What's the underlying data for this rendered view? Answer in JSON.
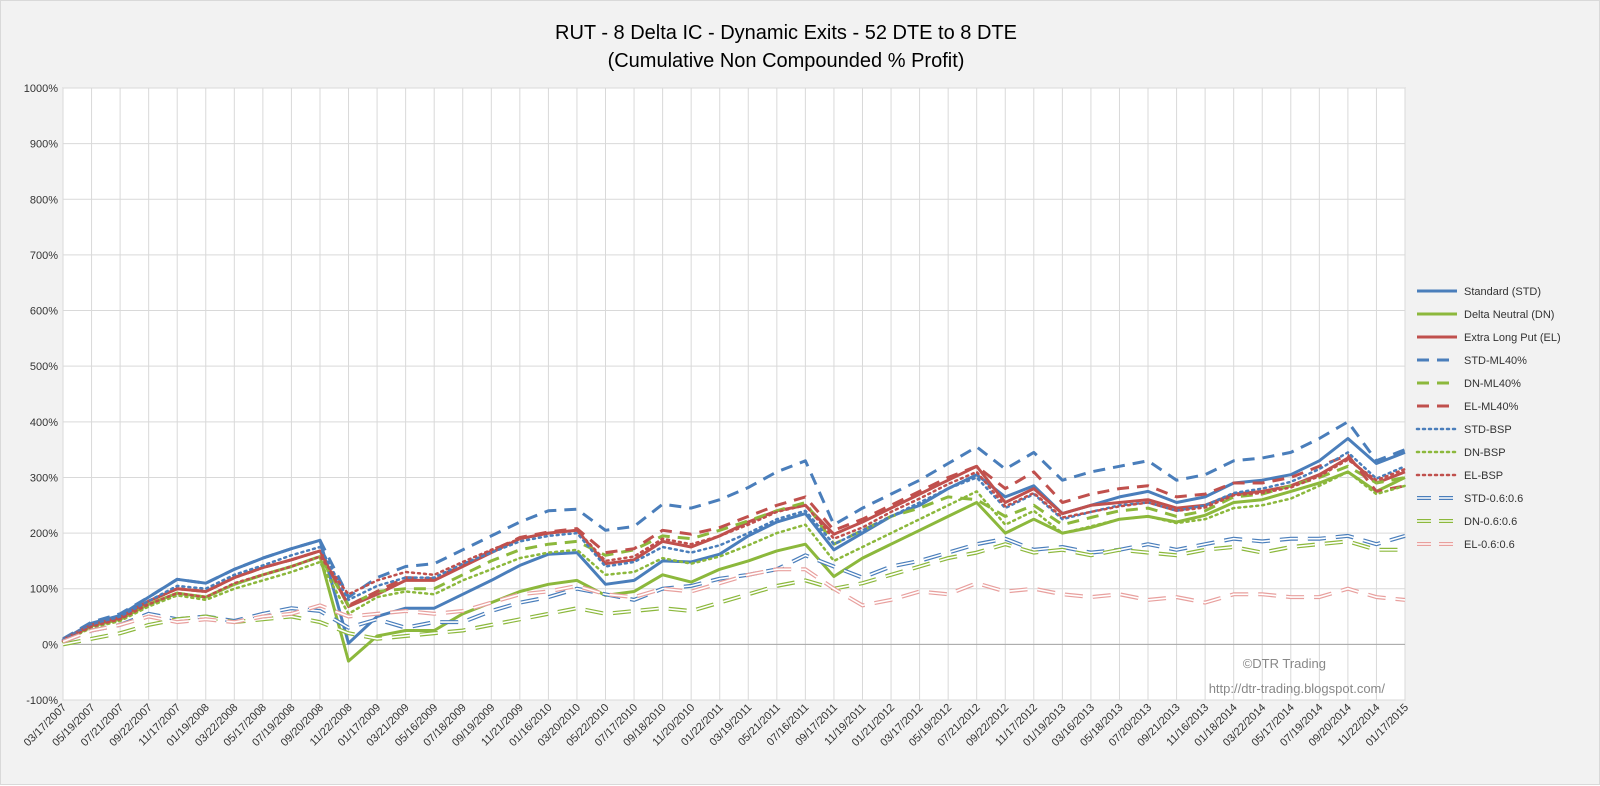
{
  "chart_data": {
    "type": "line",
    "title": "RUT - 8 Delta IC - Dynamic Exits - 52 DTE to 8 DTE",
    "subtitle": "(Cumulative Non Compounded % Profit)",
    "xlabel": "",
    "ylabel": "",
    "ylim": [
      -100,
      1000
    ],
    "y_ticks": [
      "-100%",
      "0%",
      "100%",
      "200%",
      "300%",
      "400%",
      "500%",
      "600%",
      "700%",
      "800%",
      "900%",
      "1000%"
    ],
    "grid": true,
    "legend_position": "right",
    "x_ticks": [
      "03/17/2007",
      "05/19/2007",
      "07/21/2007",
      "09/22/2007",
      "11/17/2007",
      "01/19/2008",
      "03/22/2008",
      "05/17/2008",
      "07/19/2008",
      "09/20/2008",
      "11/22/2008",
      "01/17/2009",
      "03/21/2009",
      "05/16/2009",
      "07/18/2009",
      "09/19/2009",
      "11/21/2009",
      "01/16/2010",
      "03/20/2010",
      "05/22/2010",
      "07/17/2010",
      "09/18/2010",
      "11/20/2010",
      "01/22/2011",
      "03/19/2011",
      "05/21/2011",
      "07/16/2011",
      "09/17/2011",
      "11/19/2011",
      "01/21/2012",
      "03/17/2012",
      "05/19/2012",
      "07/21/2012",
      "09/22/2012",
      "11/17/2012",
      "01/19/2013",
      "03/16/2013",
      "05/18/2013",
      "07/20/2013",
      "09/21/2013",
      "11/16/2013",
      "01/18/2014",
      "03/22/2014",
      "05/17/2014",
      "07/19/2014",
      "09/20/2014",
      "11/22/2014",
      "01/17/2015"
    ],
    "series": [
      {
        "name": "Standard (STD)",
        "color": "#4a7ebb",
        "style": "solid",
        "values": [
          8,
          38,
          52,
          85,
          117,
          110,
          135,
          155,
          172,
          187,
          2,
          50,
          65,
          65,
          90,
          115,
          142,
          162,
          165,
          108,
          115,
          150,
          148,
          162,
          195,
          220,
          235,
          170,
          200,
          230,
          250,
          280,
          305,
          265,
          285,
          235,
          250,
          265,
          275,
          255,
          265,
          290,
          295,
          305,
          330,
          370,
          325,
          345
        ]
      },
      {
        "name": "Delta Neutral (DN)",
        "color": "#8cb83c",
        "style": "solid",
        "values": [
          5,
          33,
          45,
          72,
          92,
          85,
          108,
          125,
          140,
          158,
          -30,
          15,
          25,
          25,
          55,
          75,
          95,
          108,
          115,
          88,
          95,
          125,
          112,
          135,
          150,
          168,
          180,
          122,
          155,
          180,
          205,
          230,
          255,
          200,
          225,
          200,
          210,
          225,
          230,
          220,
          232,
          255,
          260,
          275,
          290,
          310,
          275,
          300
        ]
      },
      {
        "name": "Extra Long Put (EL)",
        "color": "#c0504d",
        "style": "solid",
        "values": [
          8,
          35,
          48,
          78,
          100,
          95,
          120,
          138,
          152,
          168,
          68,
          90,
          115,
          115,
          140,
          165,
          190,
          200,
          205,
          145,
          152,
          185,
          175,
          195,
          220,
          240,
          250,
          198,
          220,
          245,
          270,
          295,
          320,
          255,
          280,
          235,
          250,
          255,
          260,
          245,
          250,
          270,
          275,
          285,
          305,
          335,
          290,
          310
        ]
      },
      {
        "name": "STD-ML40%",
        "color": "#4a7ebb",
        "style": "dash",
        "values": [
          10,
          40,
          55,
          85,
          117,
          110,
          135,
          155,
          172,
          187,
          85,
          120,
          140,
          145,
          170,
          195,
          220,
          240,
          243,
          205,
          212,
          252,
          245,
          260,
          282,
          310,
          330,
          215,
          245,
          270,
          295,
          325,
          355,
          315,
          345,
          295,
          310,
          320,
          330,
          295,
          305,
          330,
          335,
          345,
          370,
          400,
          330,
          350
        ]
      },
      {
        "name": "DN-ML40%",
        "color": "#8cb83c",
        "style": "dash",
        "values": [
          6,
          33,
          45,
          72,
          92,
          85,
          108,
          125,
          140,
          158,
          70,
          95,
          100,
          100,
          125,
          150,
          170,
          180,
          185,
          160,
          170,
          195,
          190,
          205,
          222,
          240,
          255,
          180,
          205,
          230,
          245,
          265,
          260,
          230,
          250,
          215,
          228,
          240,
          245,
          230,
          240,
          265,
          270,
          285,
          300,
          320,
          290,
          300
        ]
      },
      {
        "name": "EL-ML40%",
        "color": "#c0504d",
        "style": "dash",
        "values": [
          8,
          35,
          48,
          78,
          100,
          95,
          120,
          138,
          152,
          168,
          70,
          95,
          120,
          118,
          142,
          168,
          192,
          202,
          208,
          165,
          172,
          205,
          198,
          210,
          230,
          250,
          265,
          205,
          225,
          250,
          275,
          300,
          320,
          280,
          310,
          255,
          270,
          280,
          285,
          265,
          270,
          290,
          290,
          300,
          320,
          340,
          275,
          285
        ]
      },
      {
        "name": "STD-BSP",
        "color": "#4a7ebb",
        "style": "dot",
        "values": [
          8,
          35,
          50,
          78,
          105,
          100,
          125,
          142,
          160,
          175,
          80,
          105,
          120,
          120,
          145,
          165,
          185,
          195,
          200,
          140,
          148,
          175,
          165,
          178,
          200,
          225,
          240,
          180,
          205,
          230,
          255,
          280,
          300,
          245,
          270,
          225,
          238,
          250,
          255,
          240,
          250,
          272,
          280,
          292,
          315,
          345,
          298,
          320
        ]
      },
      {
        "name": "DN-BSP",
        "color": "#8cb83c",
        "style": "dot",
        "values": [
          5,
          30,
          42,
          68,
          88,
          80,
          100,
          115,
          130,
          148,
          55,
          85,
          95,
          90,
          115,
          135,
          155,
          165,
          170,
          125,
          130,
          155,
          145,
          158,
          178,
          200,
          215,
          150,
          175,
          200,
          225,
          250,
          275,
          215,
          240,
          200,
          212,
          225,
          230,
          218,
          225,
          245,
          250,
          262,
          285,
          310,
          270,
          285
        ]
      },
      {
        "name": "EL-BSP",
        "color": "#c0504d",
        "style": "dot",
        "values": [
          6,
          32,
          45,
          72,
          92,
          85,
          110,
          125,
          140,
          158,
          90,
          115,
          130,
          125,
          148,
          170,
          190,
          200,
          205,
          150,
          158,
          190,
          180,
          195,
          215,
          238,
          250,
          190,
          210,
          238,
          262,
          288,
          310,
          248,
          272,
          228,
          238,
          248,
          255,
          240,
          246,
          268,
          272,
          282,
          302,
          332,
          295,
          315
        ]
      },
      {
        "name": "STD-0.6:0.6",
        "color": "#4a7ebb",
        "style": "dash-outline",
        "values": [
          5,
          25,
          35,
          55,
          45,
          50,
          42,
          55,
          65,
          60,
          30,
          45,
          30,
          40,
          40,
          60,
          75,
          85,
          100,
          90,
          80,
          100,
          105,
          118,
          125,
          135,
          160,
          140,
          120,
          140,
          150,
          165,
          180,
          190,
          170,
          175,
          165,
          170,
          180,
          170,
          180,
          190,
          185,
          190,
          190,
          195,
          180,
          195
        ]
      },
      {
        "name": "DN-0.6:0.6",
        "color": "#8cb83c",
        "style": "dash-outline",
        "values": [
          0,
          10,
          20,
          35,
          45,
          50,
          40,
          45,
          50,
          40,
          20,
          10,
          15,
          20,
          25,
          35,
          45,
          55,
          65,
          55,
          60,
          65,
          60,
          75,
          90,
          105,
          115,
          100,
          110,
          125,
          140,
          155,
          165,
          180,
          165,
          170,
          160,
          170,
          165,
          160,
          170,
          175,
          165,
          175,
          180,
          185,
          170,
          170
        ]
      },
      {
        "name": "EL-0.6:0.6",
        "color": "#e8a09e",
        "style": "dash-outline",
        "values": [
          5,
          25,
          35,
          50,
          40,
          45,
          40,
          50,
          55,
          70,
          50,
          55,
          60,
          55,
          60,
          75,
          90,
          95,
          105,
          90,
          85,
          100,
          95,
          110,
          125,
          135,
          135,
          100,
          70,
          80,
          95,
          90,
          110,
          95,
          100,
          90,
          85,
          90,
          80,
          85,
          75,
          90,
          90,
          85,
          85,
          100,
          85,
          80
        ]
      }
    ]
  },
  "watermark": {
    "copyright": "©DTR Trading",
    "url": "http://dtr-trading.blogspot.com/"
  }
}
